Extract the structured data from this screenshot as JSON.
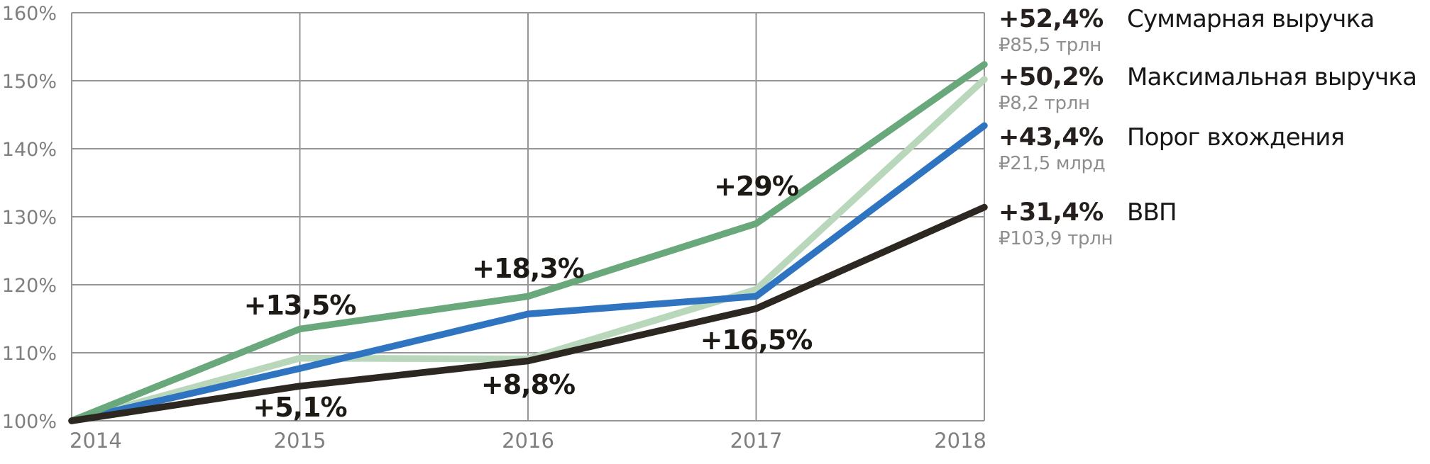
{
  "chart_data": {
    "type": "line",
    "title": "",
    "x_labels": [
      "2014",
      "2015",
      "2016",
      "2017",
      "2018"
    ],
    "x_values": [
      2014,
      2015,
      2016,
      2017,
      2018
    ],
    "ylim": [
      100,
      160
    ],
    "ytick_step": 10,
    "ytick_labels": [
      "100%",
      "110%",
      "120%",
      "130%",
      "140%",
      "150%",
      "160%"
    ],
    "grid": true,
    "legend_position": "right",
    "series": [
      {
        "key": "total-revenue",
        "name": "Суммарная выручка",
        "color": "#69a87b",
        "values": [
          100,
          113.5,
          118.3,
          129.0,
          152.4
        ],
        "change_label": "+52,4%",
        "value_label": "₽85,5 трлн"
      },
      {
        "key": "max-revenue",
        "name": "Максимальная выручка",
        "color": "#b9d7bb",
        "values": [
          100,
          109.2,
          109.1,
          119.3,
          150.2
        ],
        "change_label": "+50,2%",
        "value_label": "₽8,2 трлн"
      },
      {
        "key": "entry-threshold",
        "name": "Порог вхождения",
        "color": "#2e74c0",
        "values": [
          100,
          107.7,
          115.7,
          118.3,
          143.4
        ],
        "change_label": "+43,4%",
        "value_label": "₽21,5 млрд"
      },
      {
        "key": "gdp",
        "name": "ВВП",
        "color": "#2d2721",
        "values": [
          100,
          105.1,
          108.8,
          116.5,
          131.4
        ],
        "change_label": "+31,4%",
        "value_label": "₽103,9 трлн"
      }
    ],
    "annotations": [
      {
        "text": "+13,5%",
        "year": 2015,
        "pct": 117.0,
        "placement": "above"
      },
      {
        "text": "+18,3%",
        "year": 2016,
        "pct": 122.4,
        "placement": "above"
      },
      {
        "text": "+29%",
        "year": 2017,
        "pct": 134.5,
        "placement": "above"
      },
      {
        "text": "+5,1%",
        "year": 2015,
        "pct": 102.0,
        "placement": "below"
      },
      {
        "text": "+8,8%",
        "year": 2016,
        "pct": 105.3,
        "placement": "below"
      },
      {
        "text": "+16,5%",
        "year": 2017,
        "pct": 111.9,
        "placement": "below"
      }
    ]
  },
  "colors": {
    "background": "#ffffff",
    "grid": "#969696",
    "axis_text": "#7f7f7f",
    "annotation_text": "#1d1915",
    "legend_pct": "#25201d",
    "legend_name": "#161616",
    "legend_sub": "#8e8e8e"
  }
}
